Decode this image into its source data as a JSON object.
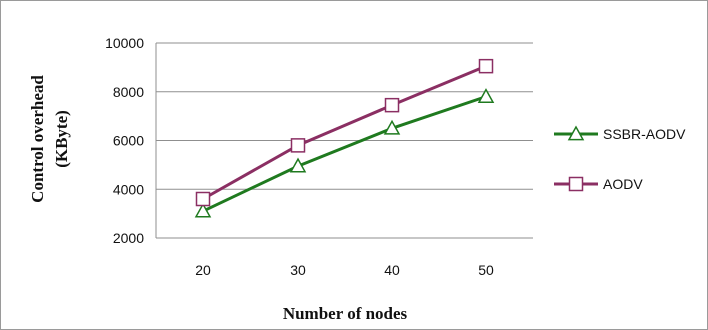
{
  "chart_data": {
    "type": "line",
    "x": [
      20,
      30,
      40,
      50
    ],
    "xlabel": "Number of nodes",
    "ylabel": "Control overhead",
    "ylabel_unit": "(KByte)",
    "ylim": [
      2000,
      10000
    ],
    "yticks": [
      2000,
      4000,
      6000,
      8000,
      10000
    ],
    "grid": true,
    "legend_position": "right",
    "series": [
      {
        "name": "SSBR-AODV",
        "values": [
          3100,
          4950,
          6500,
          7800
        ],
        "color": "#1f7a1f",
        "marker": "triangle"
      },
      {
        "name": "AODV",
        "values": [
          3600,
          5800,
          7450,
          9050
        ],
        "color": "#8b2f63",
        "marker": "square"
      }
    ]
  }
}
